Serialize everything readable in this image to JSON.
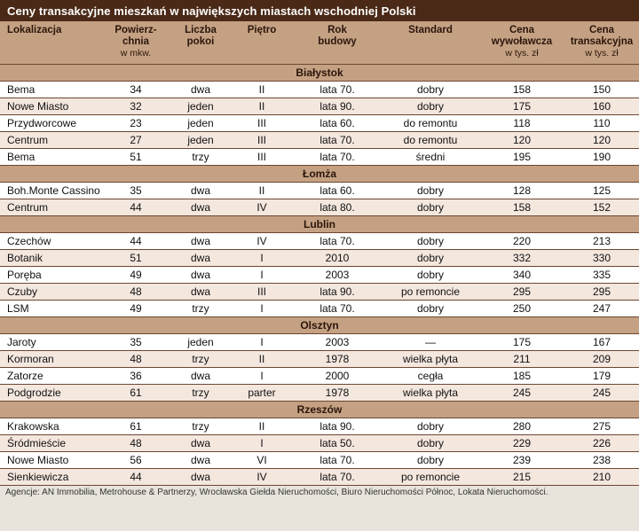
{
  "title": "Ceny transakcyjne mieszkań w największych miastach wschodniej Polski",
  "footer": "Agencje: AN Immobilia, Metrohouse & Partnerzy, Wrocławska Giełda Nieruchomości, Biuro Nieruchomości Północ, Lokata Nieruchomości.",
  "colors": {
    "title_bar_bg": "#4a2917",
    "title_text": "#ffffff",
    "header_bg": "#c5a183",
    "section_bg": "#c5a183",
    "header_text": "#2a160b",
    "row_bg": "#ffffff",
    "row_alt_bg": "#f4e7de",
    "grid_line": "#6a4730",
    "body_text": "#111111",
    "footer_text": "#333333",
    "page_bg": "#e8e4dc"
  },
  "chart_data": {
    "type": "table",
    "title": "Ceny transakcyjne mieszkań w największych miastach wschodniej Polski",
    "columns": [
      {
        "label": "Lokalizacja",
        "unit": ""
      },
      {
        "label": "Powierz-\nchnia",
        "unit": "w mkw."
      },
      {
        "label": "Liczba\npokoi",
        "unit": ""
      },
      {
        "label": "Piętro",
        "unit": ""
      },
      {
        "label": "Rok\nbudowy",
        "unit": ""
      },
      {
        "label": "Standard",
        "unit": ""
      },
      {
        "label": "Cena\nwywoławcza",
        "unit": "w tys. zł"
      },
      {
        "label": "Cena\ntransakcyjna",
        "unit": "w tys. zł"
      }
    ],
    "sections": [
      {
        "city": "Białystok",
        "rows": [
          [
            "Bema",
            "34",
            "dwa",
            "II",
            "lata 70.",
            "dobry",
            "158",
            "150"
          ],
          [
            "Nowe Miasto",
            "32",
            "jeden",
            "II",
            "lata 90.",
            "dobry",
            "175",
            "160"
          ],
          [
            "Przydworcowe",
            "23",
            "jeden",
            "III",
            "lata 60.",
            "do remontu",
            "118",
            "110"
          ],
          [
            "Centrum",
            "27",
            "jeden",
            "III",
            "lata 70.",
            "do remontu",
            "120",
            "120"
          ],
          [
            "Bema",
            "51",
            "trzy",
            "III",
            "lata 70.",
            "średni",
            "195",
            "190"
          ]
        ]
      },
      {
        "city": "Łomża",
        "rows": [
          [
            "Boh.Monte Cassino",
            "35",
            "dwa",
            "II",
            "lata 60.",
            "dobry",
            "128",
            "125"
          ],
          [
            "Centrum",
            "44",
            "dwa",
            "IV",
            "lata 80.",
            "dobry",
            "158",
            "152"
          ]
        ]
      },
      {
        "city": "Lublin",
        "rows": [
          [
            "Czechów",
            "44",
            "dwa",
            "IV",
            "lata 70.",
            "dobry",
            "220",
            "213"
          ],
          [
            "Botanik",
            "51",
            "dwa",
            "I",
            "2010",
            "dobry",
            "332",
            "330"
          ],
          [
            "Poręba",
            "49",
            "dwa",
            "I",
            "2003",
            "dobry",
            "340",
            "335"
          ],
          [
            "Czuby",
            "48",
            "dwa",
            "III",
            "lata 90.",
            "po remoncie",
            "295",
            "295"
          ],
          [
            "LSM",
            "49",
            "trzy",
            "I",
            "lata 70.",
            "dobry",
            "250",
            "247"
          ]
        ]
      },
      {
        "city": "Olsztyn",
        "rows": [
          [
            "Jaroty",
            "35",
            "jeden",
            "I",
            "2003",
            "—",
            "175",
            "167"
          ],
          [
            "Kormoran",
            "48",
            "trzy",
            "II",
            "1978",
            "wielka płyta",
            "211",
            "209"
          ],
          [
            "Zatorze",
            "36",
            "dwa",
            "I",
            "2000",
            "cegła",
            "185",
            "179"
          ],
          [
            "Podgrodzie",
            "61",
            "trzy",
            "parter",
            "1978",
            "wielka płyta",
            "245",
            "245"
          ]
        ]
      },
      {
        "city": "Rzeszów",
        "rows": [
          [
            "Krakowska",
            "61",
            "trzy",
            "II",
            "lata 90.",
            "dobry",
            "280",
            "275"
          ],
          [
            "Śródmieście",
            "48",
            "dwa",
            "I",
            "lata 50.",
            "dobry",
            "229",
            "226"
          ],
          [
            "Nowe Miasto",
            "56",
            "dwa",
            "VI",
            "lata 70.",
            "dobry",
            "239",
            "238"
          ],
          [
            "Sienkiewicza",
            "44",
            "dwa",
            "IV",
            "lata 70.",
            "po remoncie",
            "215",
            "210"
          ]
        ]
      }
    ]
  }
}
